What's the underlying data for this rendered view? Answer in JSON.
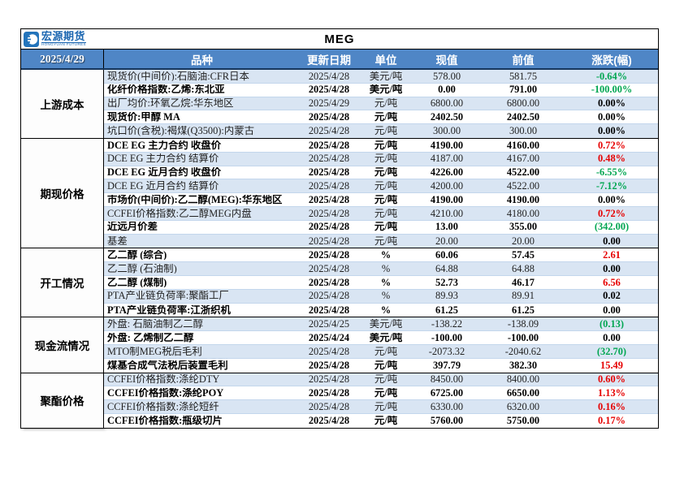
{
  "brand": {
    "logo_cn": "宏源期货",
    "logo_en": "HONGYUAN FUTURES"
  },
  "title": "MEG",
  "report_date": "2025/4/29",
  "columns": {
    "name": "品种",
    "date": "更新日期",
    "unit": "单位",
    "current": "现值",
    "previous": "前值",
    "change": "涨跌(幅)"
  },
  "colors": {
    "header_bg": "#4f86c6",
    "stripe_bg": "#d9e5f3",
    "up_red": "#e60000",
    "down_green": "#00a651"
  },
  "sections": [
    {
      "label": "上游成本",
      "rows": [
        {
          "name": "现货价(中间价):石脑油:CFR日本",
          "date": "2025/4/28",
          "unit": "美元/吨",
          "current": "578.00",
          "previous": "581.75",
          "change": "-0.64%",
          "dir": "down",
          "bold": false
        },
        {
          "name": "化纤价格指数:乙烯:东北亚",
          "date": "2025/4/28",
          "unit": "美元/吨",
          "current": "0.00",
          "previous": "791.00",
          "change": "-100.00%",
          "dir": "down",
          "bold": true
        },
        {
          "name": "出厂均价:环氧乙烷:华东地区",
          "date": "2025/4/29",
          "unit": "元/吨",
          "current": "6800.00",
          "previous": "6800.00",
          "change": "0.00%",
          "dir": "flat",
          "bold": false
        },
        {
          "name": "现货价:甲醇 MA",
          "date": "2025/4/28",
          "unit": "元/吨",
          "current": "2402.50",
          "previous": "2402.50",
          "change": "0.00%",
          "dir": "flat",
          "bold": true
        },
        {
          "name": "坑口价(含税):褐煤(Q3500):内蒙古",
          "date": "2025/4/28",
          "unit": "元/吨",
          "current": "300.00",
          "previous": "300.00",
          "change": "0.00%",
          "dir": "flat",
          "bold": false
        }
      ]
    },
    {
      "label": "期现价格",
      "rows": [
        {
          "name": "DCE EG 主力合约 收盘价",
          "date": "2025/4/28",
          "unit": "元/吨",
          "current": "4190.00",
          "previous": "4160.00",
          "change": "0.72%",
          "dir": "up",
          "bold": true
        },
        {
          "name": "DCE EG 主力合约 结算价",
          "date": "2025/4/28",
          "unit": "元/吨",
          "current": "4187.00",
          "previous": "4167.00",
          "change": "0.48%",
          "dir": "up",
          "bold": false
        },
        {
          "name": "DCE EG 近月合约 收盘价",
          "date": "2025/4/28",
          "unit": "元/吨",
          "current": "4226.00",
          "previous": "4522.00",
          "change": "-6.55%",
          "dir": "down",
          "bold": true
        },
        {
          "name": "DCE EG 近月合约 结算价",
          "date": "2025/4/28",
          "unit": "元/吨",
          "current": "4200.00",
          "previous": "4522.00",
          "change": "-7.12%",
          "dir": "down",
          "bold": false
        },
        {
          "name": "市场价(中间价):乙二醇(MEG):华东地区",
          "date": "2025/4/28",
          "unit": "元/吨",
          "current": "4190.00",
          "previous": "4190.00",
          "change": "0.00%",
          "dir": "flat",
          "bold": true
        },
        {
          "name": "CCFEI价格指数:乙二醇MEG内盘",
          "date": "2025/4/28",
          "unit": "元/吨",
          "current": "4210.00",
          "previous": "4180.00",
          "change": "0.72%",
          "dir": "up",
          "bold": false
        },
        {
          "name": "近远月价差",
          "date": "2025/4/28",
          "unit": "元/吨",
          "current": "13.00",
          "previous": "355.00",
          "change": "(342.00)",
          "dir": "down",
          "bold": true
        },
        {
          "name": "基差",
          "date": "2025/4/28",
          "unit": "元/吨",
          "current": "20.00",
          "previous": "20.00",
          "change": "0.00",
          "dir": "flat",
          "bold": false
        }
      ]
    },
    {
      "label": "开工情况",
      "rows": [
        {
          "name": "乙二醇 (综合)",
          "date": "2025/4/28",
          "unit": "%",
          "current": "60.06",
          "previous": "57.45",
          "change": "2.61",
          "dir": "up",
          "bold": true
        },
        {
          "name": "乙二醇 (石油制)",
          "date": "2025/4/28",
          "unit": "%",
          "current": "64.88",
          "previous": "64.88",
          "change": "0.00",
          "dir": "flat",
          "bold": false
        },
        {
          "name": "乙二醇 (煤制)",
          "date": "2025/4/28",
          "unit": "%",
          "current": "52.73",
          "previous": "46.17",
          "change": "6.56",
          "dir": "up",
          "bold": true
        },
        {
          "name": "PTA产业链负荷率:聚酯工厂",
          "date": "2025/4/28",
          "unit": "%",
          "current": "89.93",
          "previous": "89.91",
          "change": "0.02",
          "dir": "flat",
          "bold": false
        },
        {
          "name": "PTA产业链负荷率:江浙织机",
          "date": "2025/4/28",
          "unit": "%",
          "current": "61.25",
          "previous": "61.25",
          "change": "0.00",
          "dir": "flat",
          "bold": true
        }
      ]
    },
    {
      "label": "现金流情况",
      "rows": [
        {
          "name": "外盘: 石脑油制乙二醇",
          "date": "2025/4/25",
          "unit": "美元/吨",
          "current": "-138.22",
          "previous": "-138.09",
          "change": "(0.13)",
          "dir": "down",
          "bold": false
        },
        {
          "name": "外盘: 乙烯制乙二醇",
          "date": "2025/4/24",
          "unit": "美元/吨",
          "current": "-100.00",
          "previous": "-100.00",
          "change": "0.00",
          "dir": "flat",
          "bold": true
        },
        {
          "name": "MTO制MEG税后毛利",
          "date": "2025/4/28",
          "unit": "元/吨",
          "current": "-2073.32",
          "previous": "-2040.62",
          "change": "(32.70)",
          "dir": "down",
          "bold": false
        },
        {
          "name": "煤基合成气法税后装置毛利",
          "date": "2025/4/28",
          "unit": "元/吨",
          "current": "397.79",
          "previous": "382.30",
          "change": "15.49",
          "dir": "up",
          "bold": true
        }
      ]
    },
    {
      "label": "聚酯价格",
      "rows": [
        {
          "name": "CCFEI价格指数:涤纶DTY",
          "date": "2025/4/28",
          "unit": "元/吨",
          "current": "8450.00",
          "previous": "8400.00",
          "change": "0.60%",
          "dir": "up",
          "bold": false
        },
        {
          "name": "CCFEI价格指数:涤纶POY",
          "date": "2025/4/28",
          "unit": "元/吨",
          "current": "6725.00",
          "previous": "6650.00",
          "change": "1.13%",
          "dir": "up",
          "bold": true
        },
        {
          "name": "CCFEI价格指数:涤纶短纤",
          "date": "2025/4/28",
          "unit": "元/吨",
          "current": "6330.00",
          "previous": "6320.00",
          "change": "0.16%",
          "dir": "up",
          "bold": false
        },
        {
          "name": "CCFEI价格指数:瓶级切片",
          "date": "2025/4/28",
          "unit": "元/吨",
          "current": "5760.00",
          "previous": "5750.00",
          "change": "0.17%",
          "dir": "up",
          "bold": true
        }
      ]
    }
  ]
}
